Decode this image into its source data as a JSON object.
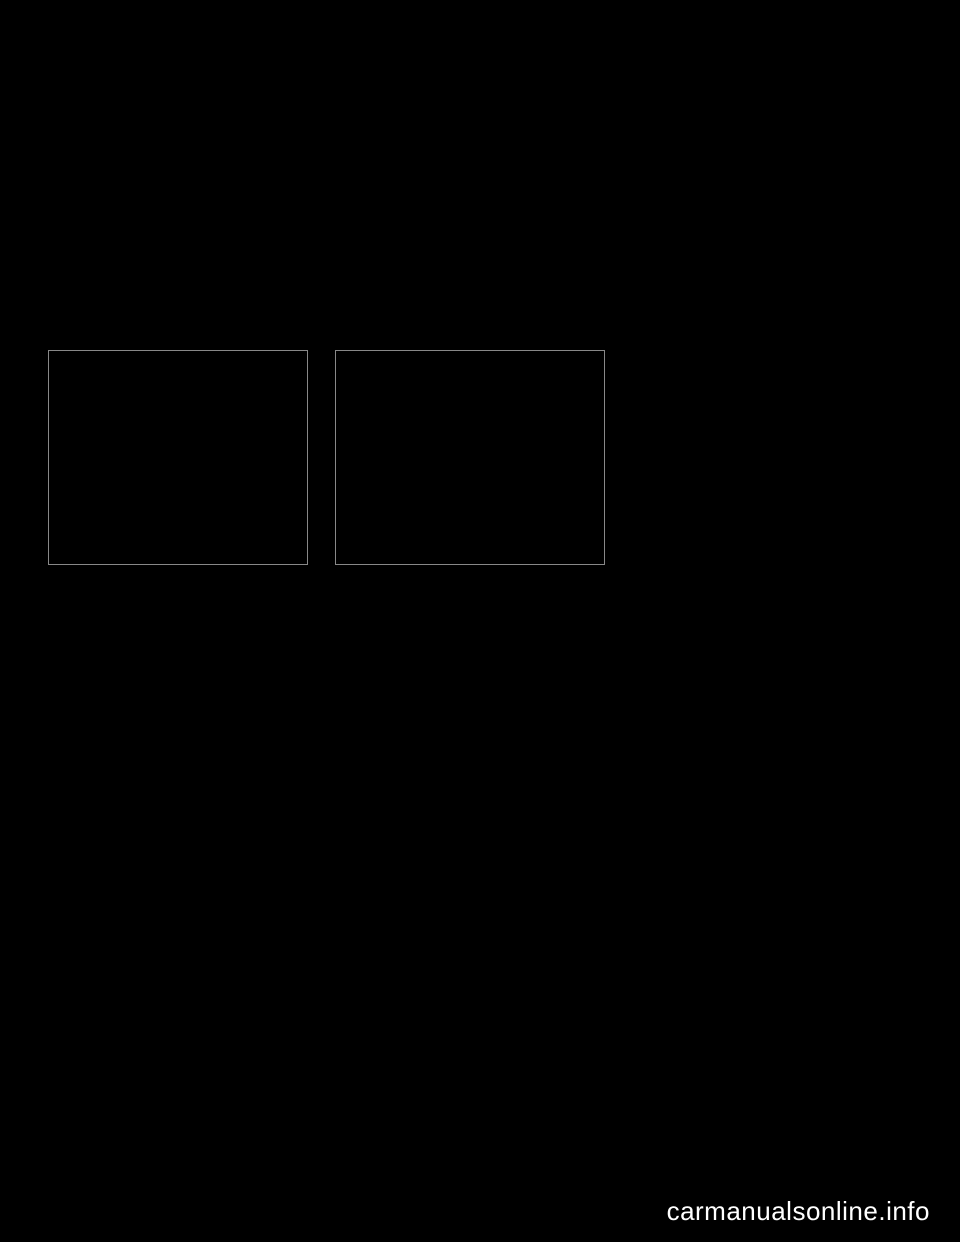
{
  "page": {
    "background_color": "#000000",
    "text_color": "#ffffff"
  },
  "figures": {
    "left": {
      "border_color": "#888888"
    },
    "right": {
      "border_color": "#888888"
    }
  },
  "footer": {
    "watermark_text": "carmanualsonline.info",
    "watermark_fontsize": 26,
    "watermark_color": "#ffffff"
  }
}
